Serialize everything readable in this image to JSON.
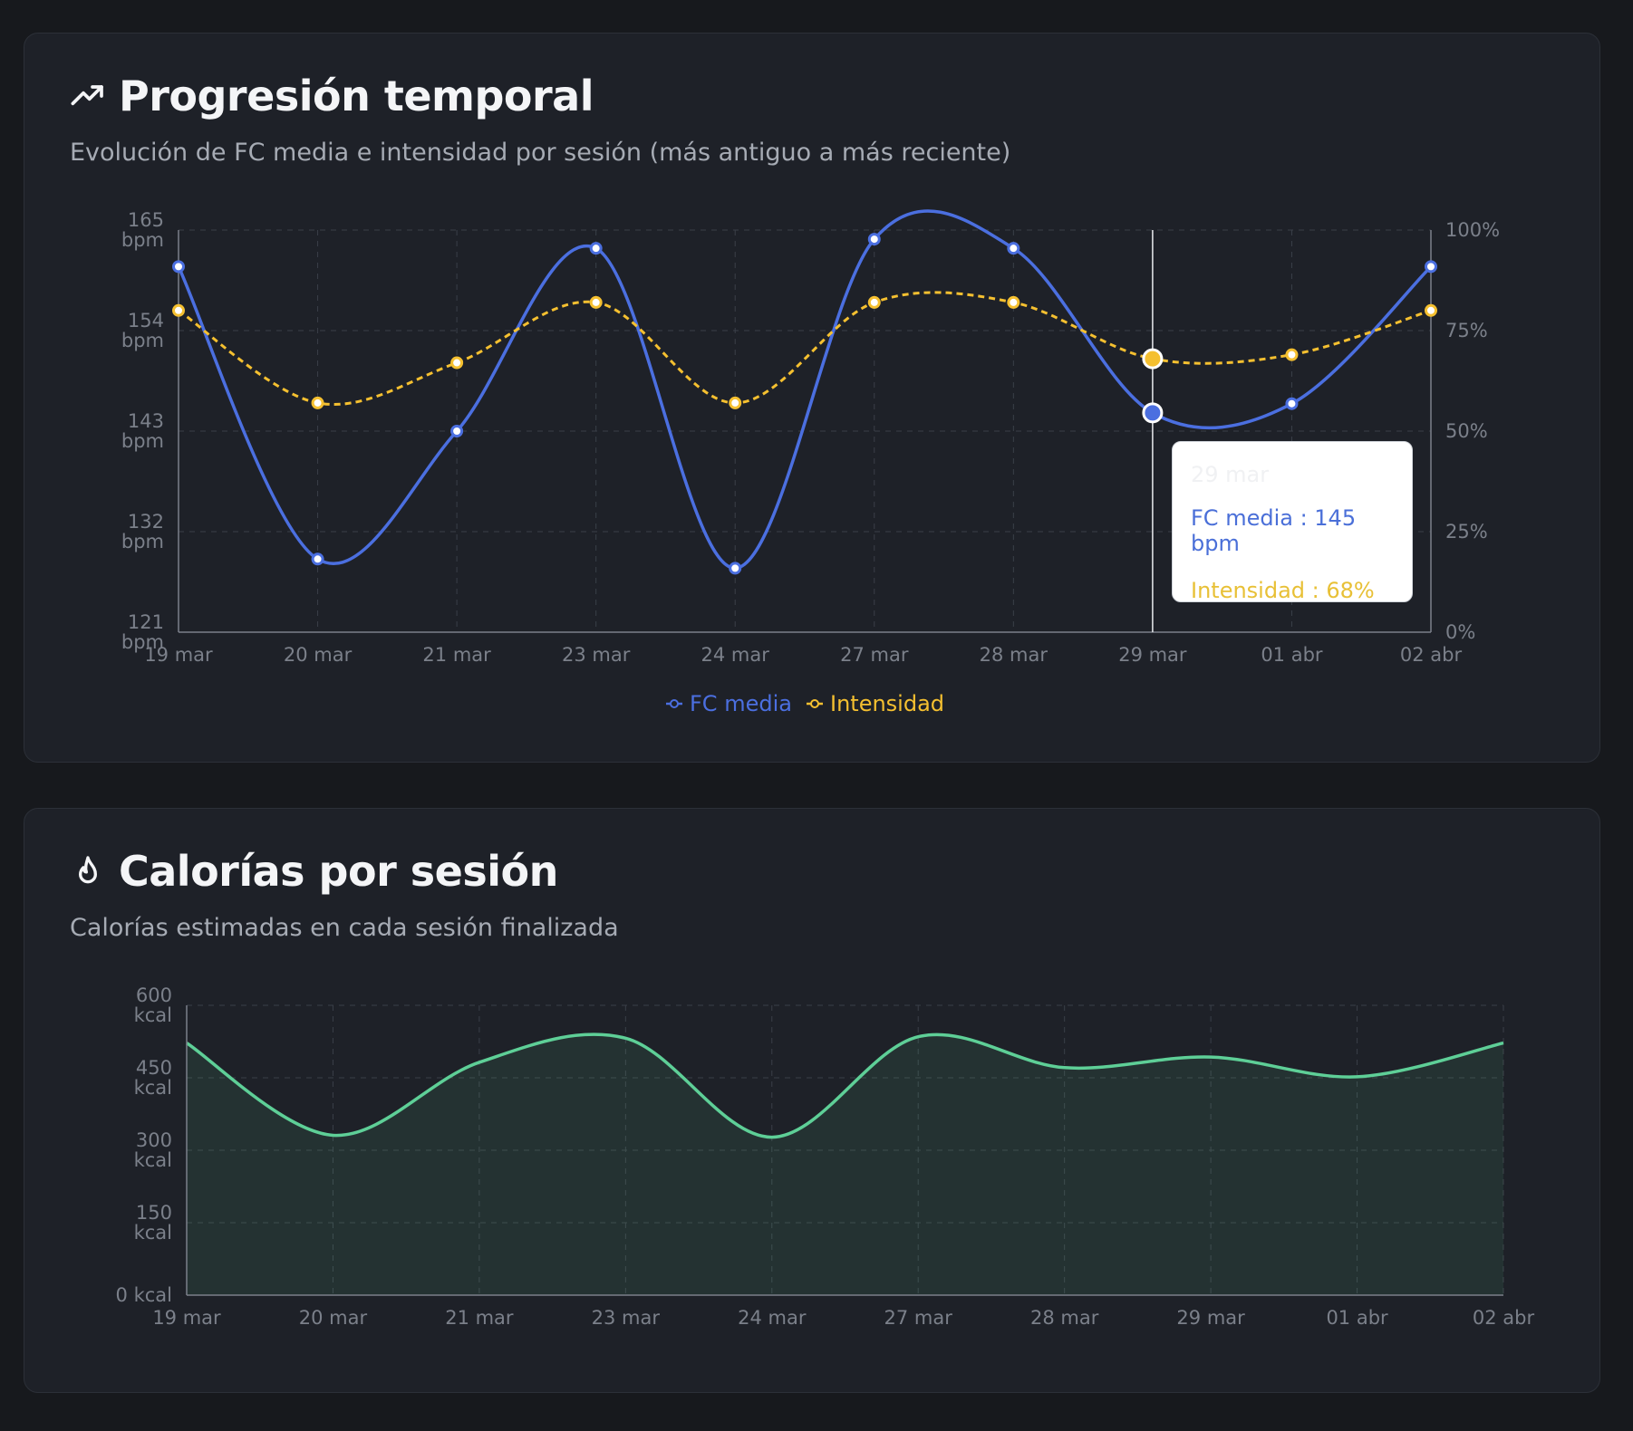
{
  "colors": {
    "fc": "#4b6fe0",
    "intensity": "#f5c030",
    "calories": "#5ecf97",
    "grid": "#3a3f48"
  },
  "progression": {
    "icon": "trending-up-icon",
    "title": "Progresión temporal",
    "subtitle": "Evolución de FC media e intensidad por sesión (más antiguo a más reciente)",
    "legend": {
      "fc": "FC media",
      "intensity": "Intensidad"
    },
    "tooltip": {
      "date": "29 mar",
      "fc_label": "FC media : 145 bpm",
      "intensity_label": "Intensidad : 68%"
    }
  },
  "calories": {
    "icon": "flame-icon",
    "title": "Calorías por sesión",
    "subtitle": "Calorías estimadas en cada sesión finalizada"
  },
  "chart_data": [
    {
      "type": "line",
      "title": "Progresión temporal",
      "categories": [
        "19 mar",
        "20 mar",
        "21 mar",
        "23 mar",
        "24 mar",
        "27 mar",
        "28 mar",
        "29 mar",
        "01 abr",
        "02 abr"
      ],
      "series": [
        {
          "name": "FC media",
          "axis": "left",
          "unit": "bpm",
          "values": [
            161,
            129,
            143,
            163,
            128,
            164,
            163,
            145,
            146,
            161
          ]
        },
        {
          "name": "Intensidad",
          "axis": "right",
          "unit": "%",
          "values": [
            80,
            57,
            67,
            82,
            57,
            82,
            82,
            68,
            69,
            80
          ]
        }
      ],
      "y_left": {
        "range": [
          121,
          165
        ],
        "ticks": [
          "165 bpm",
          "154 bpm",
          "143 bpm",
          "132 bpm",
          "121 bpm"
        ]
      },
      "y_right": {
        "range": [
          0,
          100
        ],
        "ticks": [
          "100%",
          "75%",
          "50%",
          "25%",
          "0%"
        ]
      },
      "highlight_index": 7,
      "legend": "bottom-center",
      "grid": true
    },
    {
      "type": "area",
      "title": "Calorías por sesión",
      "categories": [
        "19 mar",
        "20 mar",
        "21 mar",
        "23 mar",
        "24 mar",
        "27 mar",
        "28 mar",
        "29 mar",
        "01 abr",
        "02 abr"
      ],
      "series": [
        {
          "name": "Calorías",
          "unit": "kcal",
          "values": [
            522,
            331,
            482,
            532,
            327,
            535,
            471,
            493,
            452,
            522
          ]
        }
      ],
      "y": {
        "range": [
          0,
          600
        ],
        "ticks": [
          "600 kcal",
          "450 kcal",
          "300 kcal",
          "150 kcal",
          "0 kcal"
        ]
      },
      "grid": true
    }
  ]
}
